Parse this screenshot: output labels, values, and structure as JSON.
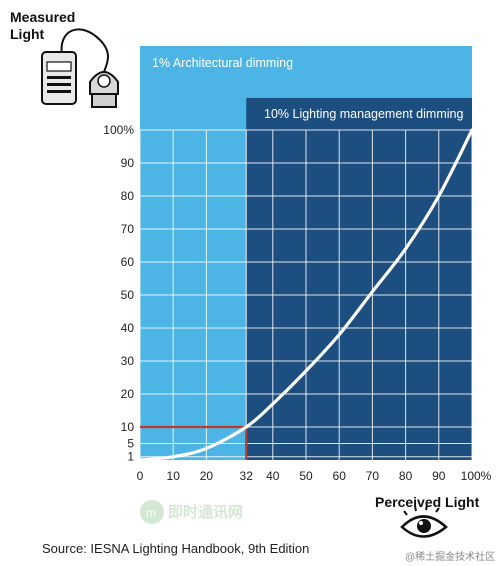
{
  "chart_data": {
    "type": "line",
    "title": "",
    "xlabel": "Perceived Light",
    "ylabel": "Measured Light",
    "xlim": [
      0,
      100
    ],
    "ylim": [
      0,
      100
    ],
    "x_ticks": [
      "0",
      "10",
      "20",
      "32",
      "40",
      "50",
      "60",
      "70",
      "80",
      "90",
      "100%"
    ],
    "y_ticks": [
      "1",
      "5",
      "10",
      "20",
      "30",
      "40",
      "50",
      "60",
      "70",
      "80",
      "90",
      "100%"
    ],
    "series": [
      {
        "x": [
          0,
          10,
          20,
          32,
          40,
          50,
          60,
          70,
          80,
          90,
          100
        ],
        "y": [
          0,
          1,
          3.5,
          10,
          17,
          27,
          38,
          51,
          64,
          80,
          100
        ]
      }
    ],
    "bands": [
      {
        "label": "1% Architectural dimming",
        "color": "#4DB5E6"
      },
      {
        "label": "10% Lighting management dimming",
        "color": "#1D4E80"
      }
    ],
    "highlight": {
      "x": 32,
      "y": 10,
      "color": "#C0392B"
    },
    "grid": true
  },
  "colors": {
    "light_band": "#4DB5E6",
    "dark_band": "#1D4E80",
    "curve": "#ffffff",
    "grid": "#ffffff"
  },
  "icons": {
    "meter": "light-meter-icon",
    "eye": "eye-icon"
  },
  "watermark": {
    "logo_text": "即时通讯网",
    "corner_text": "@稀土掘金技术社区"
  },
  "source_text": "Source:  IESNA Lighting Handbook, 9th Edition"
}
